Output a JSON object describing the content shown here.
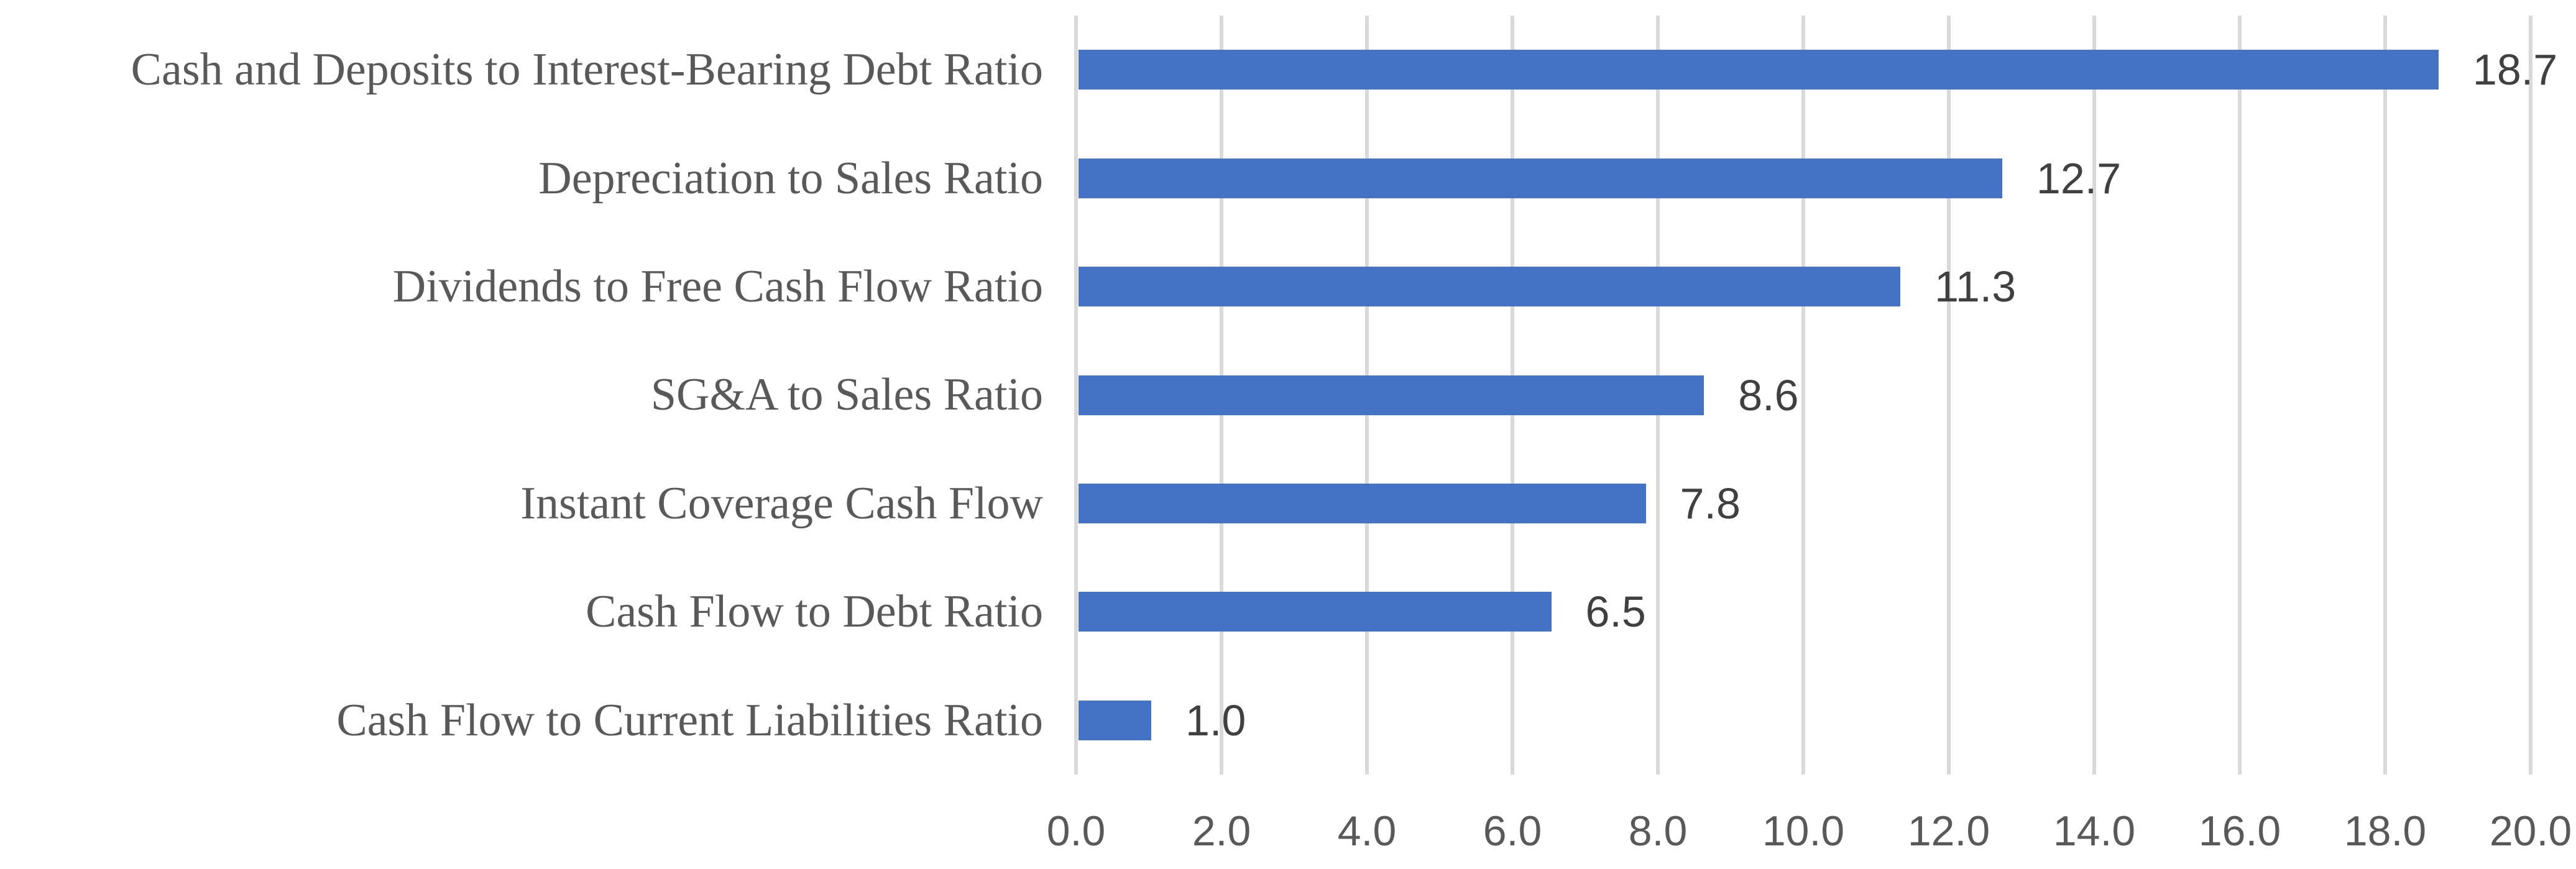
{
  "chart_data": {
    "type": "bar",
    "orientation": "horizontal",
    "title": "",
    "xlabel": "",
    "ylabel": "",
    "categories": [
      "Cash and Deposits to Interest-Bearing Debt Ratio",
      "Depreciation to Sales Ratio",
      "Dividends to Free Cash Flow Ratio",
      "SG&A to Sales Ratio",
      "Instant Coverage Cash Flow",
      "Cash Flow to Debt Ratio",
      "Cash Flow to Current Liabilities Ratio"
    ],
    "values": [
      18.7,
      12.7,
      11.3,
      8.6,
      7.8,
      6.5,
      1.0
    ],
    "value_labels": [
      "18.7",
      "12.7",
      "11.3",
      "8.6",
      "7.8",
      "6.5",
      "1.0"
    ],
    "xlim": [
      0,
      20
    ],
    "x_tick_values": [
      0,
      2,
      4,
      6,
      8,
      10,
      12,
      14,
      16,
      18,
      20
    ],
    "x_tick_labels": [
      "0.0",
      "2.0",
      "4.0",
      "6.0",
      "8.0",
      "10.0",
      "12.0",
      "14.0",
      "16.0",
      "18.0",
      "20.0"
    ],
    "grid": true,
    "legend": false,
    "data_labels_shown": true,
    "colors": {
      "bar": "#4472C4",
      "gridline": "#D9D9D9",
      "category_label": "#595959",
      "value_label": "#404040",
      "axis_label": "#595959",
      "background": "#FFFFFF"
    }
  }
}
